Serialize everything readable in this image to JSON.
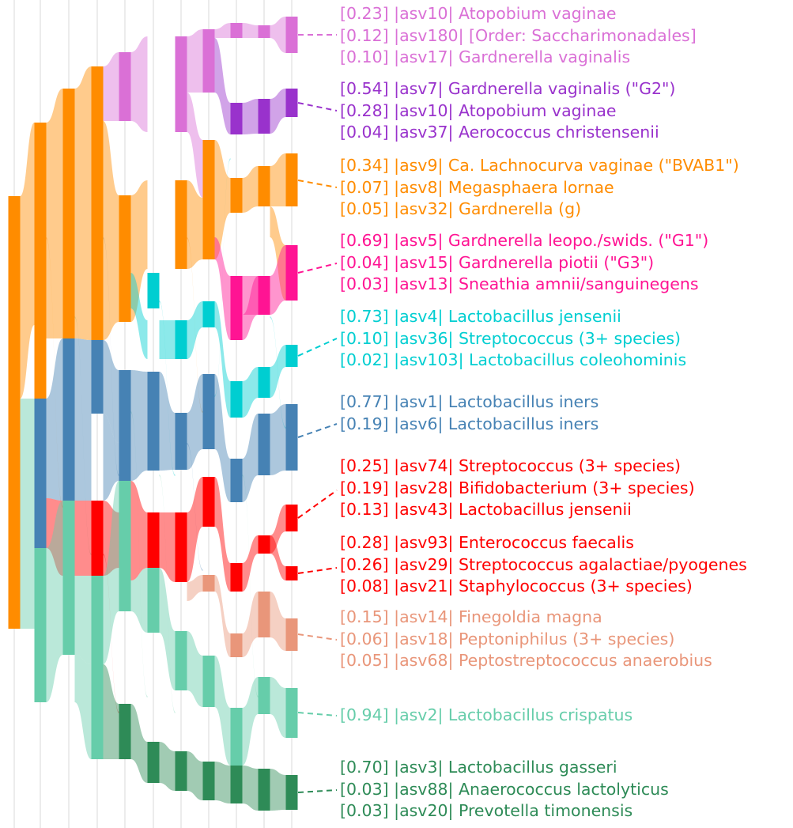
{
  "diagram": {
    "type": "alluvial",
    "columns": 11,
    "clusters": [
      {
        "id": "pink",
        "color": "#DA70D6",
        "lines": [
          "[0.23] |asv10| Atopobium vaginae",
          "[0.12] |asv180| [Order: Saccharimonadales]",
          "[0.10] |asv17| Gardnerella vaginalis"
        ]
      },
      {
        "id": "purple",
        "color": "#9932CC",
        "lines": [
          "[0.54] |asv7| Gardnerella vaginalis (\"G2\")",
          "[0.28] |asv10| Atopobium vaginae",
          "[0.04] |asv37| Aerococcus christensenii"
        ]
      },
      {
        "id": "orange",
        "color": "#FF8C00",
        "lines": [
          "[0.34] |asv9| Ca. Lachnocurva vaginae (\"BVAB1\")",
          "[0.07] |asv8| Megasphaera lornae",
          "[0.05] |asv32| Gardnerella (g)"
        ]
      },
      {
        "id": "magenta",
        "color": "#FF1493",
        "lines": [
          "[0.69] |asv5| Gardnerella leopo./swids. (\"G1\")",
          "[0.04] |asv15| Gardnerella piotii (\"G3\")",
          "[0.03] |asv13| Sneathia amnii/sanguinegens"
        ]
      },
      {
        "id": "cyan",
        "color": "#00CED1",
        "lines": [
          "[0.73] |asv4| Lactobacillus jensenii",
          "[0.10] |asv36| Streptococcus (3+ species)",
          "[0.02] |asv103| Lactobacillus coleohominis"
        ]
      },
      {
        "id": "steelblue",
        "color": "#4682B4",
        "lines": [
          "[0.77] |asv1| Lactobacillus iners",
          "[0.19] |asv6| Lactobacillus iners"
        ]
      },
      {
        "id": "red1",
        "color": "#FF0000",
        "lines": [
          "[0.25] |asv74| Streptococcus (3+ species)",
          "[0.19] |asv28| Bifidobacterium (3+ species)",
          "[0.13] |asv43| Lactobacillus jensenii"
        ]
      },
      {
        "id": "red2",
        "color": "#FF0000",
        "lines": [
          "[0.28] |asv93| Enterococcus faecalis",
          "[0.26] |asv29| Streptococcus agalactiae/pyogenes",
          "[0.08] |asv21| Staphylococcus (3+ species)"
        ]
      },
      {
        "id": "salmon",
        "color": "#E9967A",
        "lines": [
          "[0.15] |asv14| Finegoldia magna",
          "[0.06] |asv18| Peptoniphilus (3+ species)",
          "[0.05] |asv68| Peptostreptococcus anaerobius"
        ]
      },
      {
        "id": "aqua",
        "color": "#66CDAA",
        "lines": [
          "[0.94] |asv2| Lactobacillus crispatus"
        ]
      },
      {
        "id": "green",
        "color": "#2E8B57",
        "lines": [
          "[0.70] |asv3| Lactobacillus gasseri",
          "[0.03] |asv88| Anaerococcus lactolyticus",
          "[0.03] |asv20| Prevotella timonensis"
        ]
      }
    ]
  }
}
